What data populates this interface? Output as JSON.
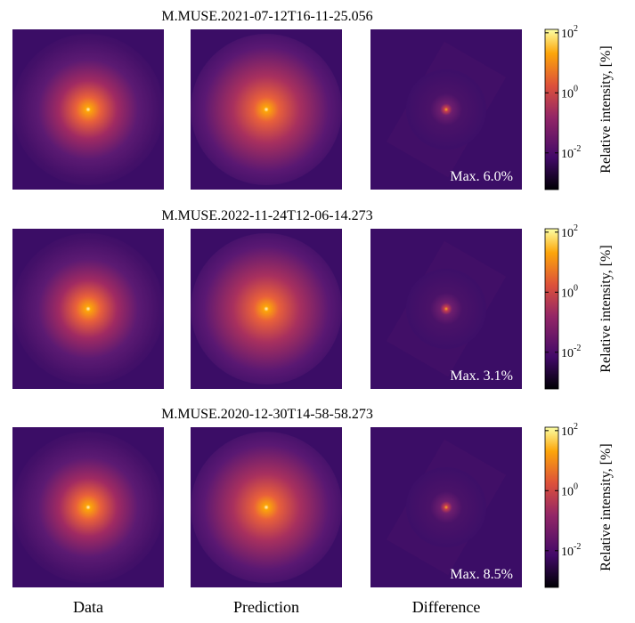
{
  "rows": [
    {
      "title": "M.MUSE.2021-07-12T16-11-25.056",
      "max_label": "Max. 6.0%"
    },
    {
      "title": "M.MUSE.2022-11-24T12-06-14.273",
      "max_label": "Max. 3.1%"
    },
    {
      "title": "M.MUSE.2020-12-30T14-58-58.273",
      "max_label": "Max. 8.5%"
    }
  ],
  "columns": [
    "Data",
    "Prediction",
    "Difference"
  ],
  "colorbar": {
    "label": "Relative intensity, [%]",
    "scale": "log",
    "lim": [
      0.0006,
      130
    ],
    "ticks": [
      {
        "value": 100,
        "base": "10",
        "exponent": "2"
      },
      {
        "value": 1,
        "base": "10",
        "exponent": "0"
      },
      {
        "value": 0.01,
        "base": "10",
        "exponent": "-2"
      }
    ]
  }
}
